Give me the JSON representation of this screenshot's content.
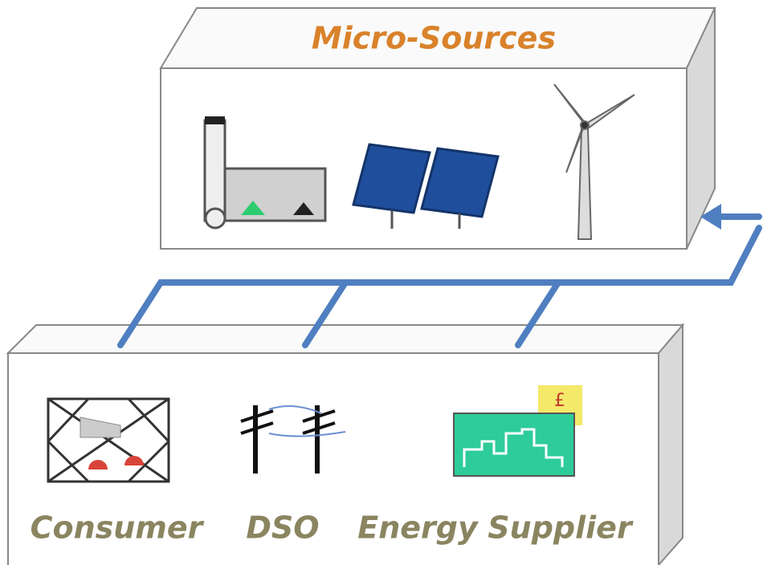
{
  "title": "Micro-Sources",
  "price_sign": "£",
  "labels": [
    "Consumer",
    "DSO",
    "Energy",
    "Supplier"
  ]
}
